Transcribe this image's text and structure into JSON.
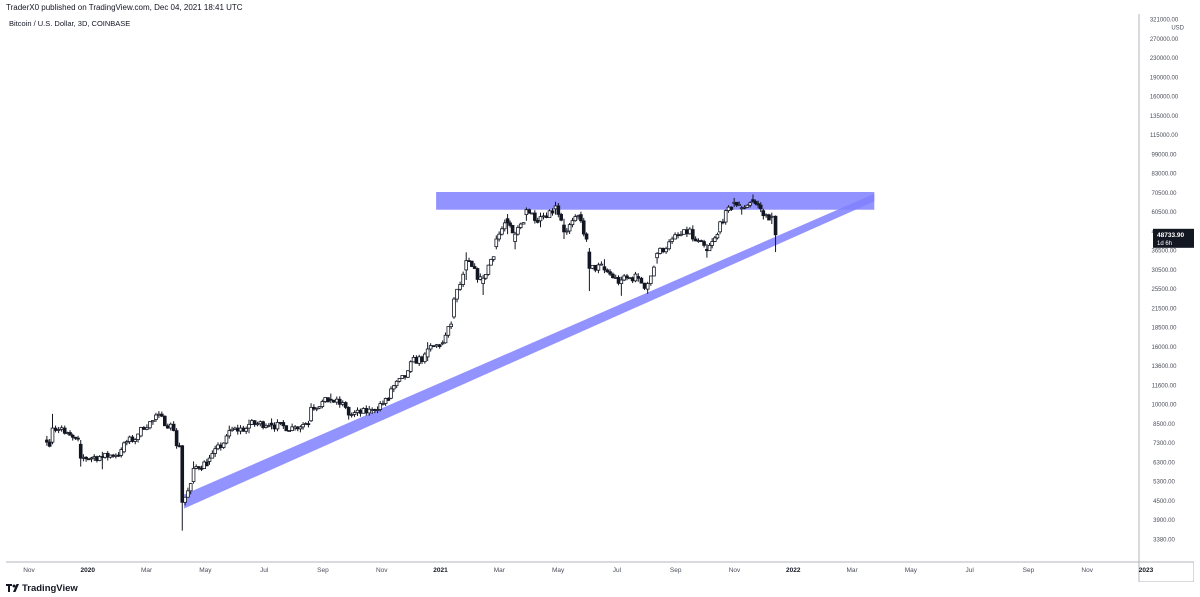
{
  "header": {
    "published": "TraderX0 published on TradingView.com, Dec 04, 2021 18:41 UTC",
    "symbol": "Bitcoin / U.S. Dollar, 3D, COINBASE"
  },
  "footer": {
    "brand": "TradingView",
    "logo_icon": "tradingview-logo-icon"
  },
  "colors": {
    "candle": "#131722",
    "zone": "#8080ff",
    "price_tag_bg": "#131722",
    "price_tag_text": "#ffffff",
    "axis_line": "#b2b5be"
  },
  "chart_data": {
    "type": "candlestick",
    "title": "Bitcoin / U.S. Dollar, 3D, COINBASE",
    "y_axis": {
      "scale": "log",
      "currency": "USD",
      "ticks": [
        "321000.00",
        "270000.00",
        "230000.00",
        "190000.00",
        "160000.00",
        "135000.00",
        "115000.00",
        "99000.00",
        "83000.00",
        "70500.00",
        "60500.00",
        "42500.00",
        "36500.00",
        "30500.00",
        "25500.00",
        "21500.00",
        "18500.00",
        "16000.00",
        "13600.00",
        "11600.00",
        "10000.00",
        "8500.00",
        "7300.00",
        "6300.00",
        "5300.00",
        "4500.00",
        "3900.00",
        "3380.00"
      ]
    },
    "x_axis": {
      "ticks": [
        "Nov",
        "2020",
        "Mar",
        "May",
        "Jul",
        "Sep",
        "Nov",
        "2021",
        "Mar",
        "May",
        "Jul",
        "Sep",
        "Nov",
        "2022",
        "Mar",
        "May",
        "Jul",
        "Sep",
        "Nov",
        "2023"
      ]
    },
    "last_price": {
      "value": "48733.90",
      "countdown": "1d 6h"
    },
    "anchors": [
      {
        "date": "2019-10-20",
        "o": 8300,
        "h": 8600,
        "l": 7900,
        "c": 8150
      },
      {
        "date": "2019-10-26",
        "o": 8150,
        "h": 10400,
        "l": 8000,
        "c": 9200
      },
      {
        "date": "2019-11-08",
        "o": 9200,
        "h": 9400,
        "l": 8700,
        "c": 8800
      },
      {
        "date": "2019-11-25",
        "o": 8000,
        "h": 8300,
        "l": 6600,
        "c": 7100
      },
      {
        "date": "2019-12-18",
        "o": 7200,
        "h": 7500,
        "l": 6450,
        "c": 7150
      },
      {
        "date": "2020-01-10",
        "o": 7500,
        "h": 8200,
        "l": 7400,
        "c": 8100
      },
      {
        "date": "2020-01-28",
        "o": 8600,
        "h": 9300,
        "l": 8500,
        "c": 9250
      },
      {
        "date": "2020-02-13",
        "o": 9900,
        "h": 10500,
        "l": 9700,
        "c": 10300
      },
      {
        "date": "2020-03-06",
        "o": 9000,
        "h": 9200,
        "l": 7700,
        "c": 7900
      },
      {
        "date": "2020-03-12",
        "o": 7900,
        "h": 7950,
        "l": 3800,
        "c": 4850
      },
      {
        "date": "2020-03-24",
        "o": 5800,
        "h": 6900,
        "l": 5700,
        "c": 6500
      },
      {
        "date": "2020-04-10",
        "o": 6900,
        "h": 7300,
        "l": 6700,
        "c": 7100
      },
      {
        "date": "2020-05-01",
        "o": 8600,
        "h": 9400,
        "l": 8400,
        "c": 9000
      },
      {
        "date": "2020-05-22",
        "o": 9200,
        "h": 9900,
        "l": 8800,
        "c": 9500
      },
      {
        "date": "2020-06-15",
        "o": 9600,
        "h": 10000,
        "l": 9100,
        "c": 9450
      },
      {
        "date": "2020-07-10",
        "o": 9200,
        "h": 9450,
        "l": 9000,
        "c": 9300
      },
      {
        "date": "2020-07-27",
        "o": 9800,
        "h": 11400,
        "l": 9700,
        "c": 11000
      },
      {
        "date": "2020-08-17",
        "o": 11800,
        "h": 12400,
        "l": 11400,
        "c": 11700
      },
      {
        "date": "2020-09-05",
        "o": 11000,
        "h": 11100,
        "l": 9900,
        "c": 10300
      },
      {
        "date": "2020-09-30",
        "o": 10700,
        "h": 11000,
        "l": 10400,
        "c": 10800
      },
      {
        "date": "2020-10-20",
        "o": 11900,
        "h": 13200,
        "l": 11800,
        "c": 12900
      },
      {
        "date": "2020-11-10",
        "o": 15000,
        "h": 16500,
        "l": 14800,
        "c": 16300
      },
      {
        "date": "2020-11-28",
        "o": 17000,
        "h": 19300,
        "l": 16400,
        "c": 18200
      },
      {
        "date": "2020-12-14",
        "o": 19100,
        "h": 19600,
        "l": 18800,
        "c": 19200
      },
      {
        "date": "2020-12-26",
        "o": 24000,
        "h": 28500,
        "l": 23600,
        "c": 28000
      },
      {
        "date": "2021-01-08",
        "o": 36000,
        "h": 41900,
        "l": 33000,
        "c": 39000
      },
      {
        "date": "2021-01-26",
        "o": 32000,
        "h": 34500,
        "l": 29000,
        "c": 33500
      },
      {
        "date": "2021-02-09",
        "o": 44000,
        "h": 48500,
        "l": 43000,
        "c": 47000
      },
      {
        "date": "2021-02-21",
        "o": 56000,
        "h": 58300,
        "l": 49000,
        "c": 54000
      },
      {
        "date": "2021-03-01",
        "o": 46000,
        "h": 50000,
        "l": 43000,
        "c": 49000
      },
      {
        "date": "2021-03-13",
        "o": 58000,
        "h": 61700,
        "l": 55000,
        "c": 60500
      },
      {
        "date": "2021-03-28",
        "o": 55000,
        "h": 59000,
        "l": 52000,
        "c": 57000
      },
      {
        "date": "2021-04-13",
        "o": 61000,
        "h": 64800,
        "l": 58000,
        "c": 62500
      },
      {
        "date": "2021-04-22",
        "o": 53000,
        "h": 56000,
        "l": 47000,
        "c": 50000
      },
      {
        "date": "2021-05-10",
        "o": 58000,
        "h": 59500,
        "l": 54000,
        "c": 55000
      },
      {
        "date": "2021-05-19",
        "o": 42000,
        "h": 43500,
        "l": 30000,
        "c": 36500
      },
      {
        "date": "2021-06-04",
        "o": 37000,
        "h": 39500,
        "l": 35000,
        "c": 36000
      },
      {
        "date": "2021-06-22",
        "o": 32000,
        "h": 34000,
        "l": 28800,
        "c": 33000
      },
      {
        "date": "2021-07-10",
        "o": 34000,
        "h": 35000,
        "l": 32500,
        "c": 33500
      },
      {
        "date": "2021-07-20",
        "o": 30500,
        "h": 32500,
        "l": 29300,
        "c": 32000
      },
      {
        "date": "2021-07-30",
        "o": 40000,
        "h": 42000,
        "l": 38000,
        "c": 41500
      },
      {
        "date": "2021-08-15",
        "o": 46000,
        "h": 48000,
        "l": 45000,
        "c": 47000
      },
      {
        "date": "2021-09-06",
        "o": 51000,
        "h": 52900,
        "l": 46000,
        "c": 47000
      },
      {
        "date": "2021-09-21",
        "o": 43000,
        "h": 45000,
        "l": 40000,
        "c": 42500
      },
      {
        "date": "2021-10-05",
        "o": 50000,
        "h": 55000,
        "l": 49000,
        "c": 54500
      },
      {
        "date": "2021-10-20",
        "o": 64000,
        "h": 67000,
        "l": 62000,
        "c": 64500
      },
      {
        "date": "2021-10-28",
        "o": 61000,
        "h": 62500,
        "l": 58000,
        "c": 61500
      },
      {
        "date": "2021-11-09",
        "o": 66000,
        "h": 69000,
        "l": 64000,
        "c": 65000
      },
      {
        "date": "2021-11-20",
        "o": 60000,
        "h": 61000,
        "l": 55600,
        "c": 57500
      },
      {
        "date": "2021-11-29",
        "o": 57000,
        "h": 59000,
        "l": 53500,
        "c": 57200
      },
      {
        "date": "2021-12-03",
        "o": 57200,
        "h": 57600,
        "l": 42000,
        "c": 48733.9
      }
    ],
    "annotations": [
      {
        "type": "horizontal-zone",
        "label": "resistance",
        "from": "2020-12-07",
        "to": "2022-03-18",
        "low": 60500,
        "high": 70500
      },
      {
        "type": "trendline-band",
        "label": "support",
        "from": {
          "date": "2020-03-14",
          "price": 4600
        },
        "to": {
          "date": "2022-03-18",
          "price": 65000
        }
      }
    ]
  }
}
